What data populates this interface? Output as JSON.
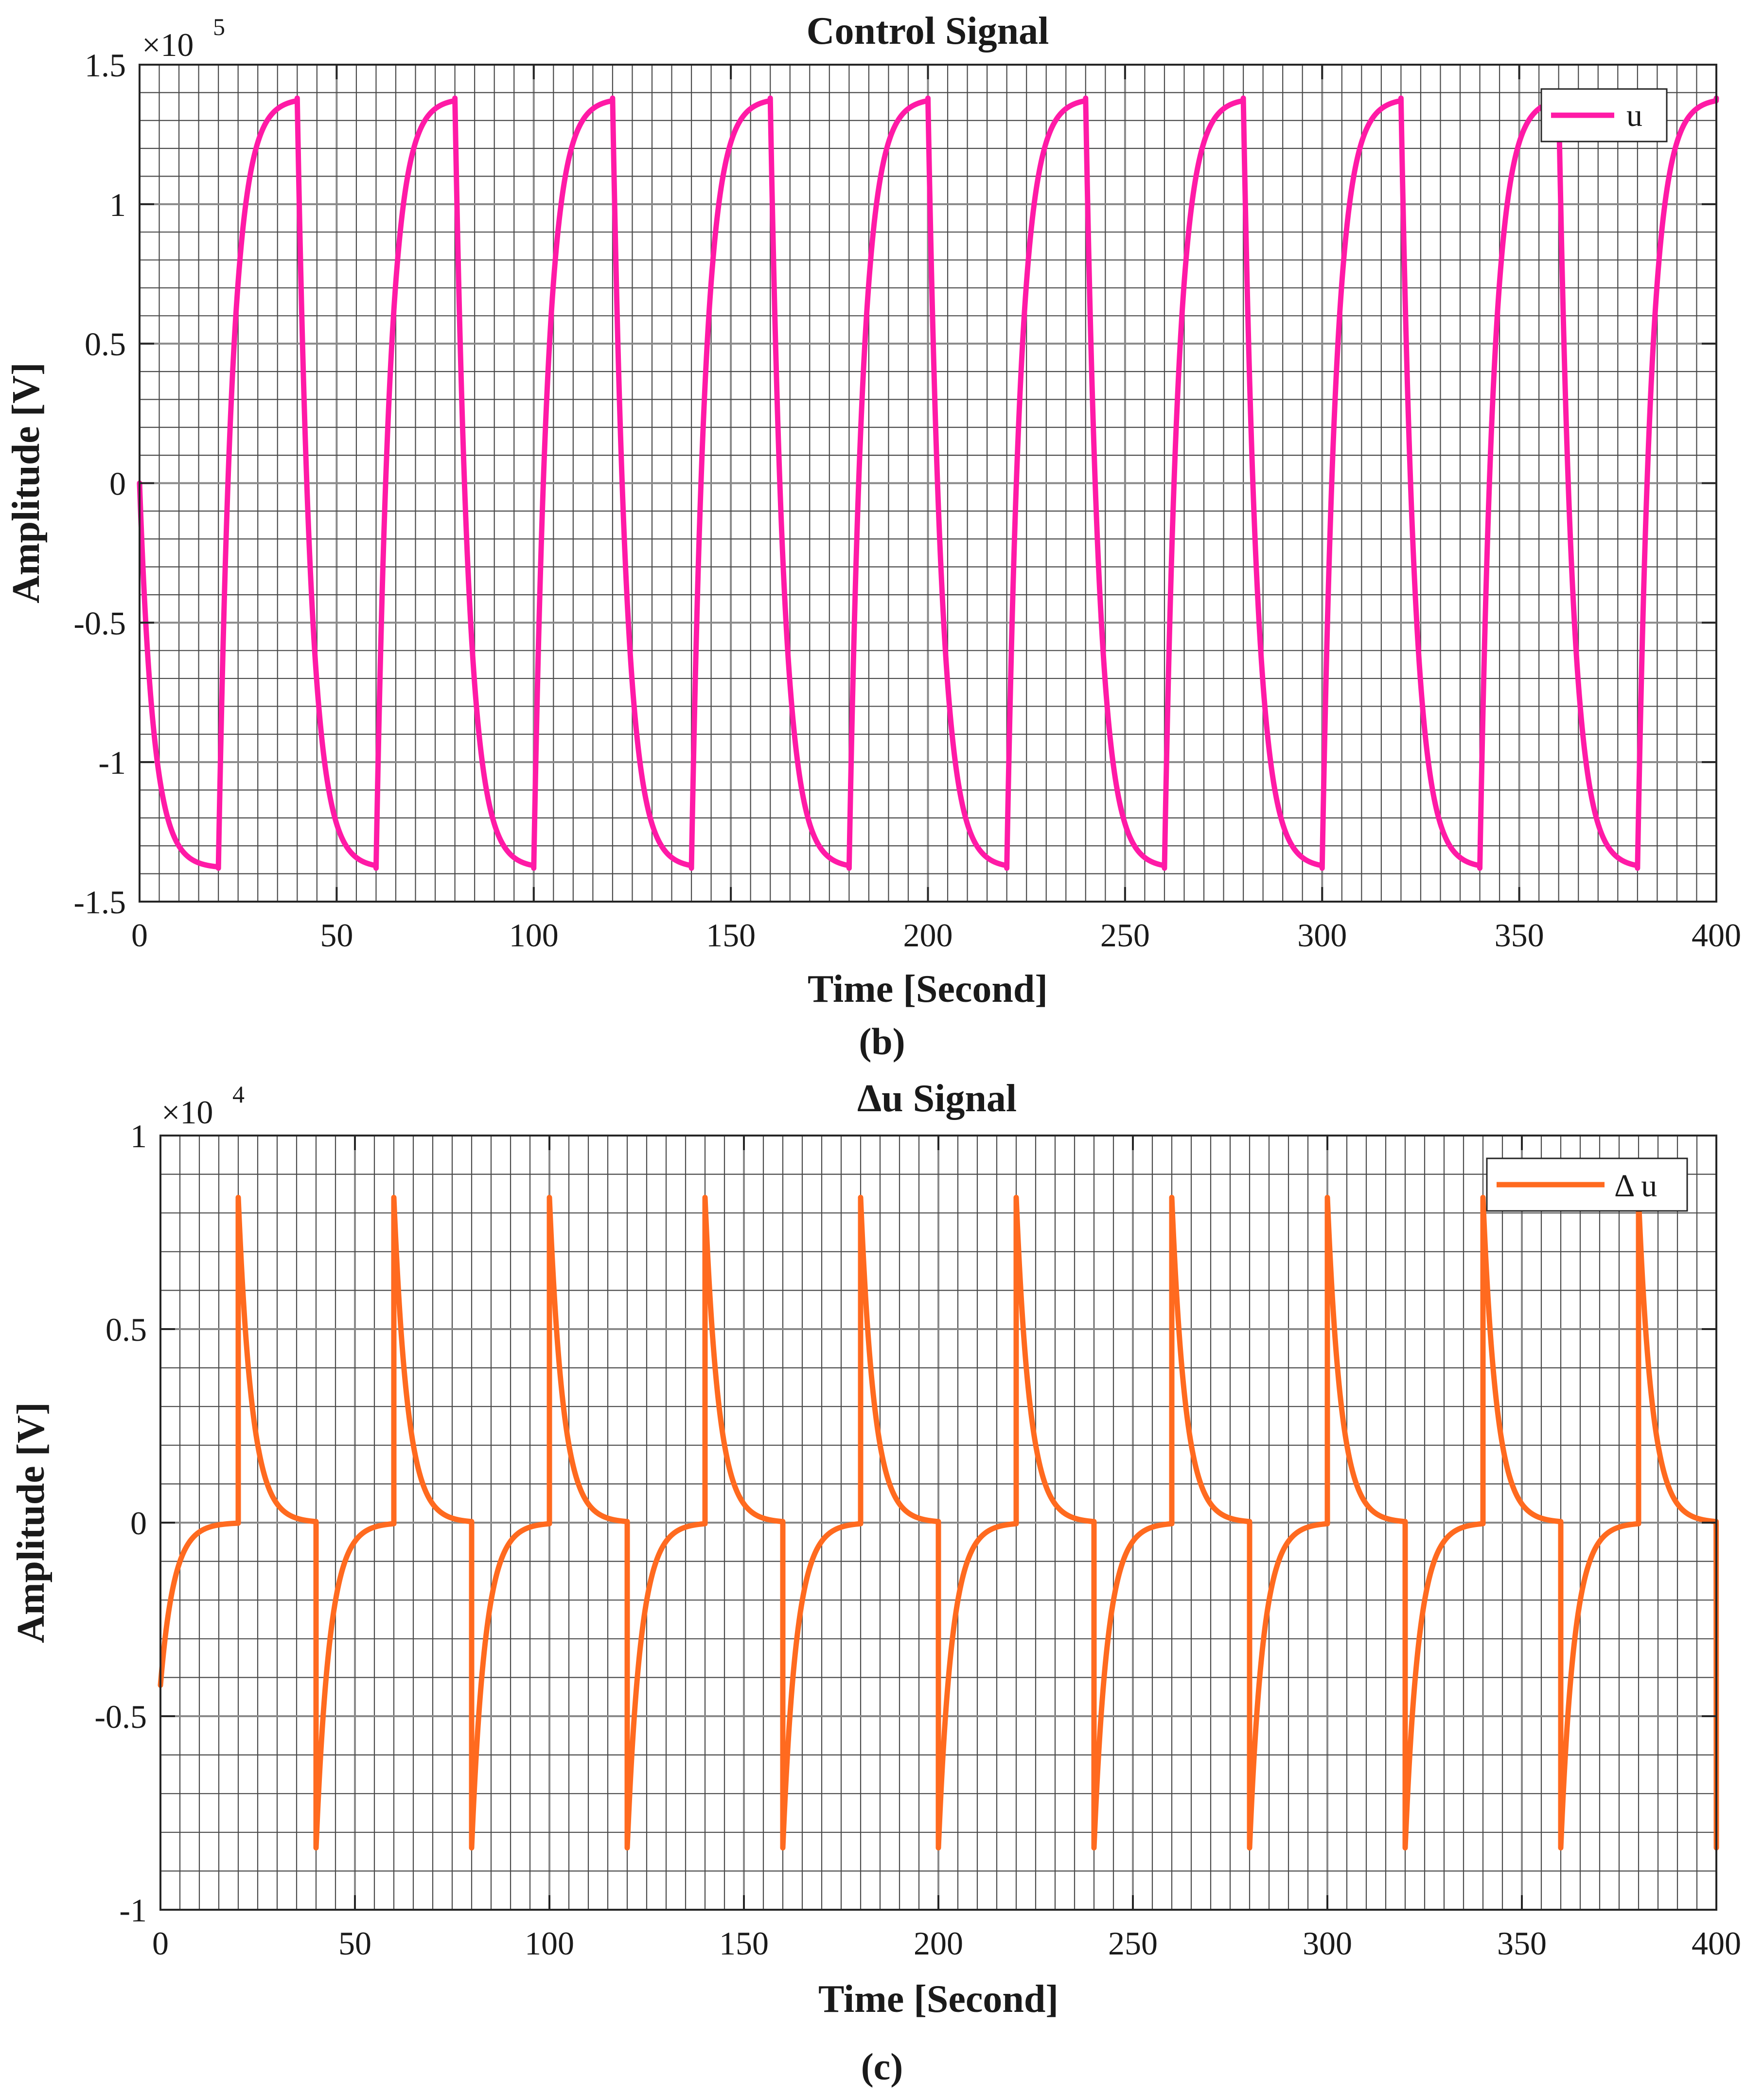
{
  "chart_data": [
    {
      "type": "line",
      "panel_label": "(b)",
      "title": "Control Signal",
      "xlabel": "Time [Second]",
      "ylabel": "Amplitude [V]",
      "exponent_label": "×10",
      "exponent": "5",
      "xlim": [
        0,
        400
      ],
      "ylim": [
        -1.5,
        1.5
      ],
      "xticks": [
        0,
        50,
        100,
        150,
        200,
        250,
        300,
        350,
        400
      ],
      "xtick_labels": [
        "0",
        "50",
        "100",
        "150",
        "200",
        "250",
        "300",
        "350",
        "400"
      ],
      "yticks": [
        -1.5,
        -1,
        -0.5,
        0,
        0.5,
        1,
        1.5
      ],
      "ytick_labels": [
        "-1.5",
        "-1",
        "-0.5",
        "0",
        "0.5",
        "1",
        "1.5"
      ],
      "grid": true,
      "minor_grid": true,
      "legend": {
        "position": "top-right",
        "entries": [
          "u"
        ]
      },
      "series": [
        {
          "name": "u",
          "color": "#ff1aa6",
          "kind": "square_first_order",
          "period": 40,
          "amplitude": 1.38,
          "time_constant": 3.5,
          "start_value": 0,
          "first_level": -1.38
        }
      ]
    },
    {
      "type": "line",
      "panel_label": "(c)",
      "title": "Δu Signal",
      "xlabel": "Time [Second]",
      "ylabel": "Amplitude [V]",
      "exponent_label": "×10",
      "exponent": "4",
      "xlim": [
        0,
        400
      ],
      "ylim": [
        -1,
        1
      ],
      "xticks": [
        0,
        50,
        100,
        150,
        200,
        250,
        300,
        350,
        400
      ],
      "xtick_labels": [
        "0",
        "50",
        "100",
        "150",
        "200",
        "250",
        "300",
        "350",
        "400"
      ],
      "yticks": [
        -1,
        -0.5,
        0,
        0.5,
        1
      ],
      "ytick_labels": [
        "-1",
        "-0.5",
        "0",
        "0.5",
        "1"
      ],
      "grid": true,
      "minor_grid": true,
      "legend": {
        "position": "top-right",
        "entries": [
          "Δ u"
        ]
      },
      "series": [
        {
          "name": "Δ u",
          "color": "#ff6a1f",
          "kind": "spike_decay",
          "period": 40,
          "spike_amplitude": 0.84,
          "first_spike": -0.42,
          "time_constant": 3.5
        }
      ]
    }
  ]
}
